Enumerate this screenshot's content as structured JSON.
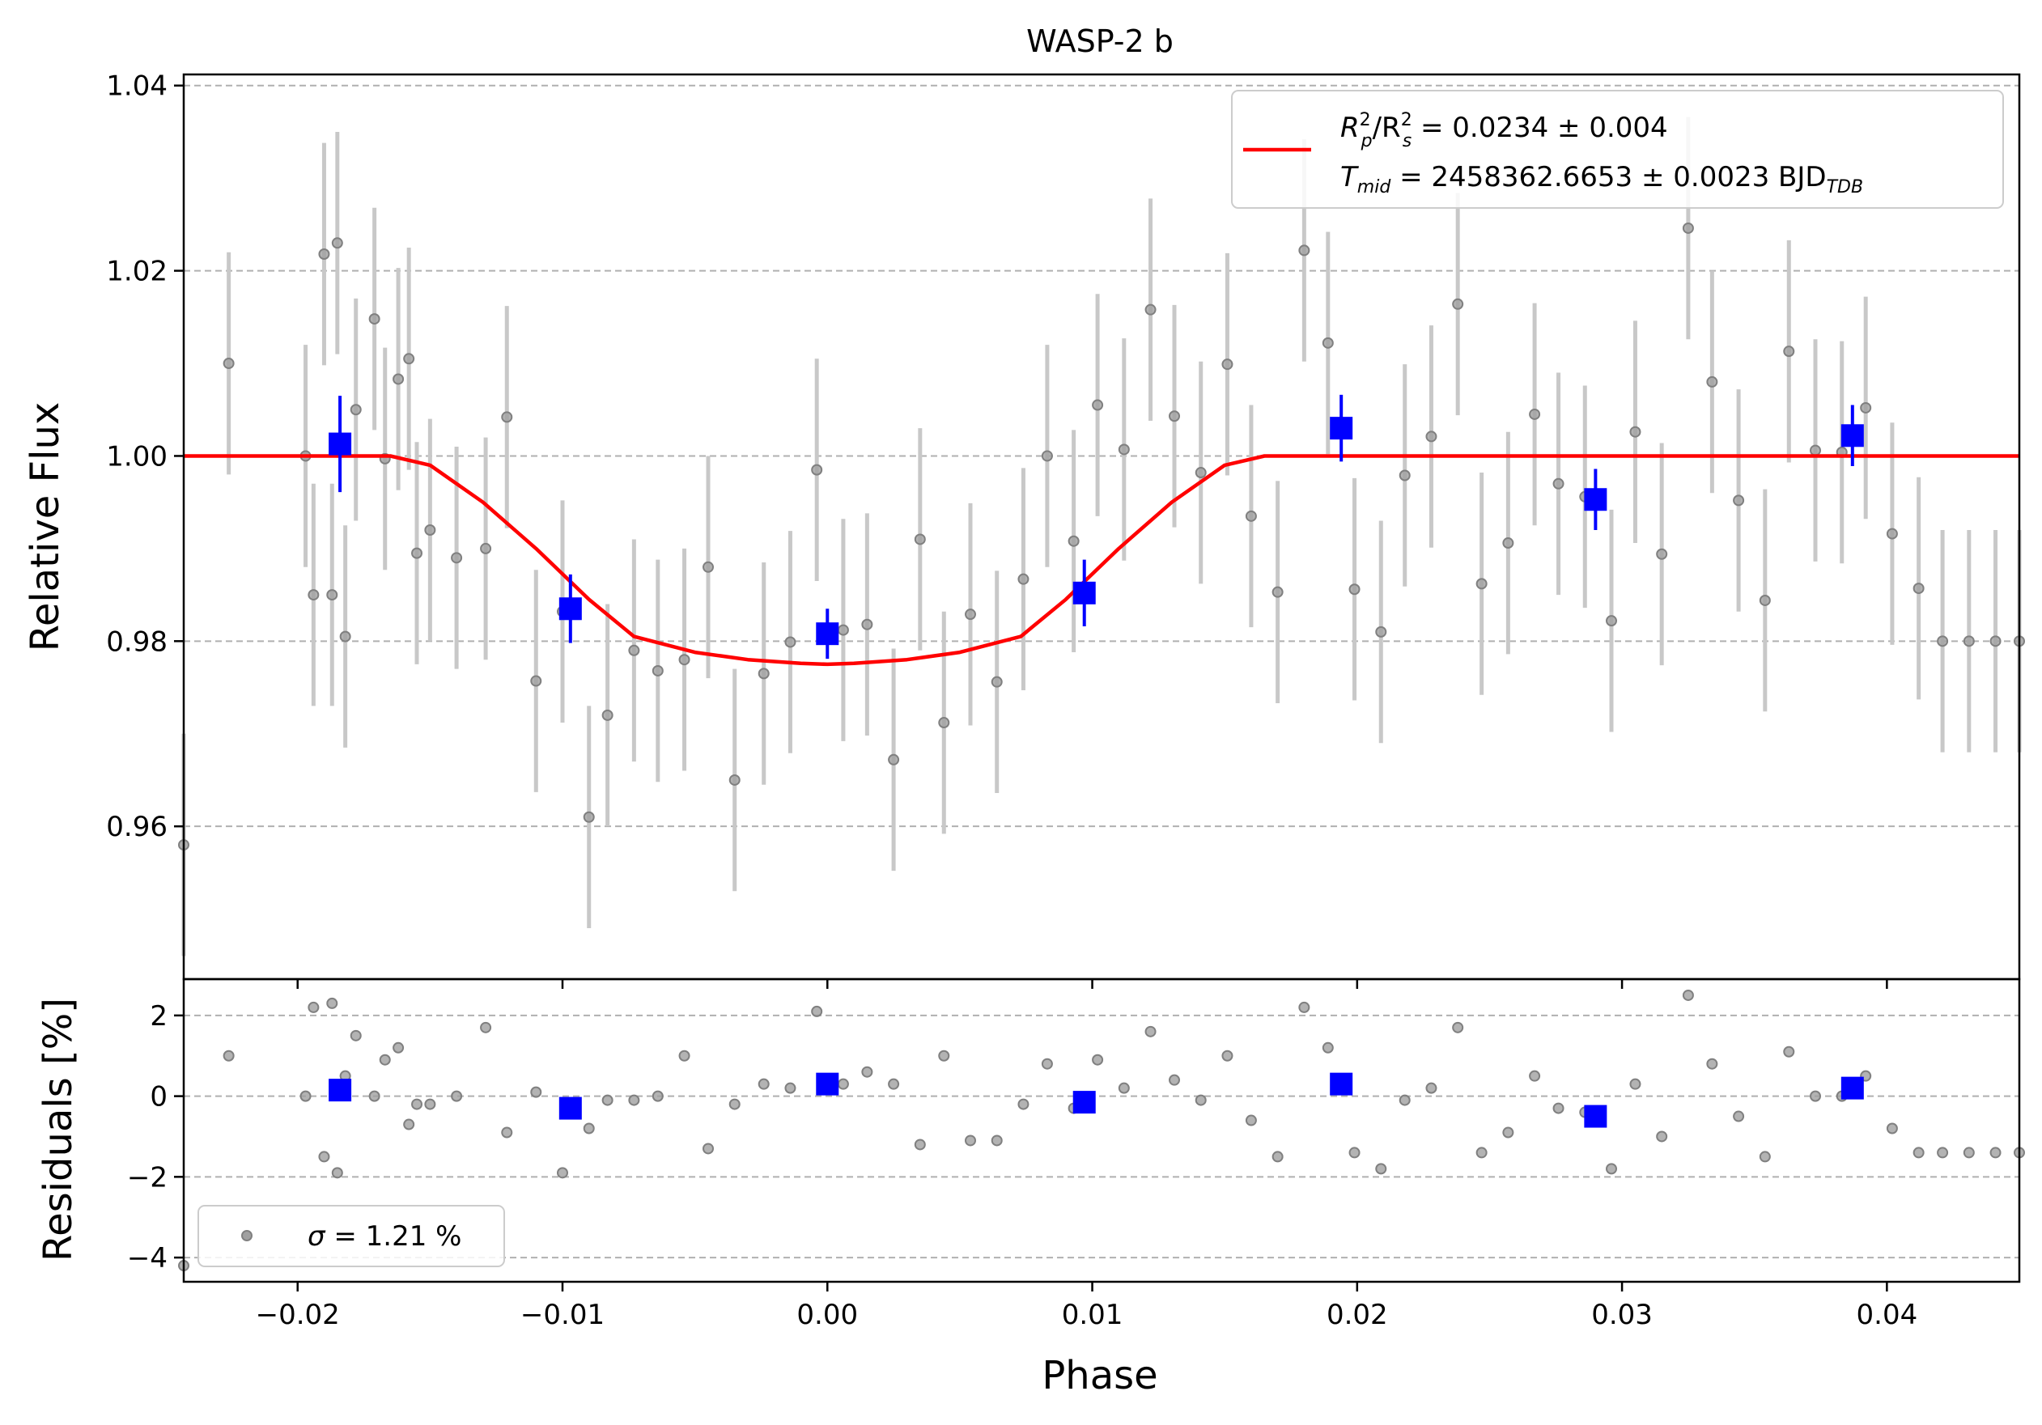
{
  "chart_data": [
    {
      "type": "scatter",
      "title": "WASP-2 b",
      "xlabel": "",
      "ylabel": "Relative Flux",
      "xlim": [
        -0.0243,
        0.045
      ],
      "ylim": [
        0.9435,
        1.0412
      ],
      "grid": "y-dashed",
      "legend_position": "top-right",
      "x_tick_labels": [
        "−0.02",
        "−0.01",
        "0.00",
        "0.01",
        "0.02",
        "0.03",
        "0.04"
      ],
      "y_ticks": [
        0.96,
        0.98,
        1.0,
        1.02,
        1.04
      ],
      "y_tick_labels": [
        "0.96",
        "0.98",
        "1.00",
        "1.02",
        "1.04"
      ],
      "legend": {
        "line1_a": "R",
        "line1_a_sup": "2",
        "line1_a_sub": "p",
        "line1_b": "/R",
        "line1_b_sup": "2",
        "line1_b_sub": "s",
        "line1_rest": " = 0.0234 ± 0.004",
        "line2_a": "T",
        "line2_a_sub": "mid",
        "line2_rest": " = 2458362.6653 ± 0.0023 BJD",
        "line2_sub": "TDB"
      },
      "colors": {
        "data": "#808080",
        "errbar": "#c8c8c8",
        "binned": "#0000ff",
        "model": "#ff0000"
      },
      "series": [
        {
          "kind": "data",
          "x": [
            -0.0243,
            -0.0226,
            -0.0197,
            -0.0194,
            -0.019,
            -0.0187,
            -0.0185,
            -0.0182,
            -0.0178,
            -0.0171,
            -0.0167,
            -0.0162,
            -0.0158,
            -0.0155,
            -0.015,
            -0.014,
            -0.0129,
            -0.0121,
            -0.011,
            -0.01,
            -0.009,
            -0.0083,
            -0.0073,
            -0.0064,
            -0.0054,
            -0.0045,
            -0.0035,
            -0.0024,
            -0.0014,
            -0.0004,
            0.0006,
            0.0015,
            0.0025,
            0.0035,
            0.0044,
            0.0054,
            0.0064,
            0.0074,
            0.0083,
            0.0093,
            0.0102,
            0.0112,
            0.0122,
            0.0131,
            0.0141,
            0.0151,
            0.016,
            0.017,
            0.018,
            0.0189,
            0.0199,
            0.0209,
            0.0218,
            0.0228,
            0.0238,
            0.0247,
            0.0257,
            0.0267,
            0.0276,
            0.0286,
            0.0296,
            0.0305,
            0.0315,
            0.0325,
            0.0334,
            0.0344,
            0.0354,
            0.0363,
            0.0373,
            0.0383,
            0.0392,
            0.0402,
            0.0412,
            0.0421,
            0.0431,
            0.0441,
            0.045
          ],
          "y": [
            0.958,
            1.01,
            1.0,
            0.985,
            1.0218,
            0.985,
            1.023,
            0.9805,
            1.005,
            1.0148,
            0.9997,
            1.0083,
            1.0105,
            0.9895,
            0.992,
            0.989,
            0.99,
            1.0042,
            0.9757,
            0.9832,
            0.961,
            0.972,
            0.979,
            0.9768,
            0.978,
            0.988,
            0.965,
            0.9765,
            0.9799,
            0.9985,
            0.9812,
            0.9818,
            0.9672,
            0.991,
            0.9712,
            0.9829,
            0.9756,
            0.9867,
            1.0,
            0.9908,
            1.0055,
            1.0007,
            1.0158,
            1.0043,
            0.9982,
            1.0099,
            0.9935,
            0.9853,
            1.0222,
            1.0122,
            0.9856,
            0.981,
            0.9979,
            1.0021,
            1.0164,
            0.9862,
            0.9906,
            1.0045,
            0.997,
            0.9956,
            0.9822,
            1.0026,
            0.9894,
            1.0246,
            1.008,
            0.9952,
            0.9844,
            1.0113,
            1.0006,
            1.0004,
            1.0052,
            0.9916,
            0.9857,
            0.98,
            0.98,
            0.98,
            0.98
          ],
          "yerr": 0.012
        },
        {
          "kind": "binned",
          "x": [
            -0.0184,
            -0.0097,
            0.0,
            0.0097,
            0.0194,
            0.029,
            0.0387
          ],
          "y": [
            1.0013,
            0.9835,
            0.9808,
            0.9852,
            1.003,
            0.9953,
            1.0022
          ],
          "yerr": [
            0.0052,
            0.0037,
            0.0027,
            0.0036,
            0.0036,
            0.0033,
            0.0033
          ]
        },
        {
          "kind": "model",
          "x": [
            -0.0243,
            -0.0165,
            -0.015,
            -0.013,
            -0.011,
            -0.009,
            -0.0073,
            -0.005,
            -0.003,
            -0.001,
            0.0,
            0.001,
            0.003,
            0.005,
            0.0073,
            0.009,
            0.011,
            0.013,
            0.015,
            0.0165,
            0.045
          ],
          "y": [
            1.0,
            1.0,
            0.999,
            0.995,
            0.99,
            0.9845,
            0.9805,
            0.9788,
            0.978,
            0.9776,
            0.9775,
            0.9776,
            0.978,
            0.9788,
            0.9805,
            0.9845,
            0.99,
            0.995,
            0.999,
            1.0,
            1.0
          ]
        }
      ]
    },
    {
      "type": "scatter",
      "title": "",
      "xlabel": "Phase",
      "ylabel": "Residuals [%]",
      "xlim": [
        -0.0243,
        0.045
      ],
      "ylim": [
        -4.6,
        2.9
      ],
      "grid": "y-dashed",
      "legend_position": "bottom-left",
      "x_ticks": [
        -0.02,
        -0.01,
        0.0,
        0.01,
        0.02,
        0.03,
        0.04
      ],
      "x_tick_labels": [
        "−0.02",
        "−0.01",
        "0.00",
        "0.01",
        "0.02",
        "0.03",
        "0.04"
      ],
      "y_ticks": [
        -4,
        -2,
        0,
        2
      ],
      "y_tick_labels": [
        "−4",
        "−2",
        "0",
        "2"
      ],
      "legend": {
        "sigma_symbol": "σ",
        "sigma_text": " = 1.21 %"
      },
      "series": [
        {
          "kind": "residuals",
          "x": [
            -0.0243,
            -0.0226,
            -0.0197,
            -0.0194,
            -0.019,
            -0.0187,
            -0.0185,
            -0.0182,
            -0.0178,
            -0.0171,
            -0.0167,
            -0.0162,
            -0.0158,
            -0.0155,
            -0.015,
            -0.014,
            -0.0129,
            -0.0121,
            -0.011,
            -0.01,
            -0.009,
            -0.0083,
            -0.0073,
            -0.0064,
            -0.0054,
            -0.0045,
            -0.0035,
            -0.0024,
            -0.0014,
            -0.0004,
            0.0006,
            0.0015,
            0.0025,
            0.0035,
            0.0044,
            0.0054,
            0.0064,
            0.0074,
            0.0083,
            0.0093,
            0.0102,
            0.0112,
            0.0122,
            0.0131,
            0.0141,
            0.0151,
            0.016,
            0.017,
            0.018,
            0.0189,
            0.0199,
            0.0209,
            0.0218,
            0.0228,
            0.0238,
            0.0247,
            0.0257,
            0.0267,
            0.0276,
            0.0286,
            0.0296,
            0.0305,
            0.0315,
            0.0325,
            0.0334,
            0.0344,
            0.0354,
            0.0363,
            0.0373,
            0.0383,
            0.0392,
            0.0402,
            0.0412,
            0.0421,
            0.0431,
            0.0441,
            0.045
          ],
          "y": [
            -4.2,
            1.0,
            0.0,
            2.2,
            -1.5,
            2.3,
            -1.9,
            0.5,
            1.5,
            0.0,
            0.9,
            1.2,
            -0.7,
            -0.2,
            -0.2,
            0.0,
            1.7,
            -0.9,
            0.1,
            -1.9,
            -0.8,
            -0.1,
            -0.1,
            0.0,
            1.0,
            -1.3,
            -0.2,
            0.3,
            0.2,
            2.1,
            0.3,
            0.6,
            0.3,
            -1.2,
            1.0,
            -1.1,
            -1.1,
            -0.2,
            0.8,
            -0.3,
            0.9,
            0.2,
            1.6,
            0.4,
            -0.1,
            1.0,
            -0.6,
            -1.5,
            2.2,
            1.2,
            -1.4,
            -1.8,
            -0.1,
            0.2,
            1.7,
            -1.4,
            -0.9,
            0.5,
            -0.3,
            -0.4,
            -1.8,
            0.3,
            -1.0,
            2.5,
            0.8,
            -0.5,
            -1.5,
            1.1,
            0.0,
            0.0,
            0.5,
            -0.8,
            -1.4,
            -1.4,
            -1.4,
            -1.4,
            -1.4
          ]
        },
        {
          "kind": "binned",
          "x": [
            -0.0184,
            -0.0097,
            0.0,
            0.0097,
            0.0194,
            0.029,
            0.0387
          ],
          "y": [
            0.15,
            -0.3,
            0.3,
            -0.15,
            0.3,
            -0.5,
            0.2
          ]
        }
      ]
    }
  ]
}
